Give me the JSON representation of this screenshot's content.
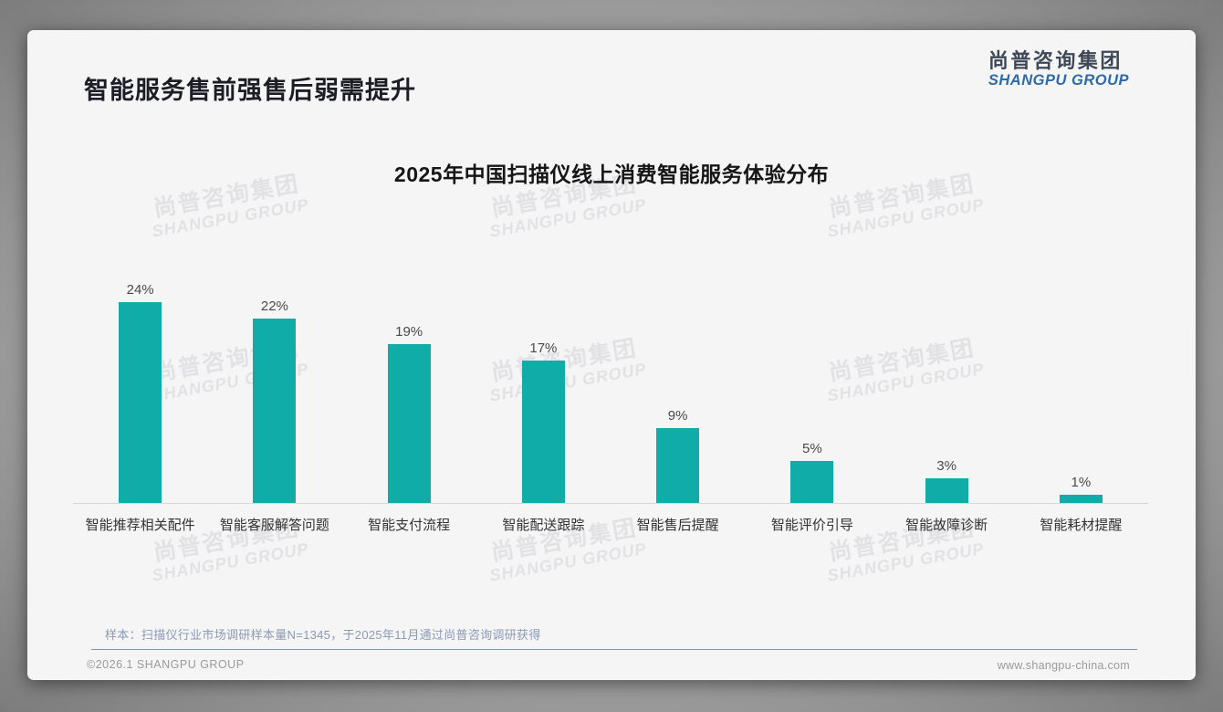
{
  "slide": {
    "title": "智能服务售前强售后弱需提升",
    "logo": {
      "cn": "尚普咨询集团",
      "en": "SHANGPU GROUP"
    },
    "watermark": {
      "cn": "尚普咨询集团",
      "en": "SHANGPU GROUP"
    },
    "footer": {
      "note": "样本：扫描仪行业市场调研样本量N=1345，于2025年11月通过尚普咨询调研获得",
      "copyright": "©2026.1 SHANGPU GROUP",
      "website": "www.shangpu-china.com"
    },
    "colors": {
      "bar": "#10ADA8",
      "logo_blue": "#2E6BA5",
      "note_blue": "#8B9AB4",
      "divider_blue": "#7D93AE"
    }
  },
  "chart_data": {
    "type": "bar",
    "title": "2025年中国扫描仪线上消费智能服务体验分布",
    "categories": [
      "智能推荐相关配件",
      "智能客服解答问题",
      "智能支付流程",
      "智能配送跟踪",
      "智能售后提醒",
      "智能评价引导",
      "智能故障诊断",
      "智能耗材提醒"
    ],
    "values": [
      24,
      22,
      19,
      17,
      9,
      5,
      3,
      1
    ],
    "labels": [
      "24%",
      "22%",
      "19%",
      "17%",
      "9%",
      "5%",
      "3%",
      "1%"
    ],
    "unit": "%",
    "xlabel": "",
    "ylabel": "",
    "ylim": [
      0,
      26
    ],
    "grid": false,
    "legend": false,
    "bar_color": "#10ADA8"
  }
}
